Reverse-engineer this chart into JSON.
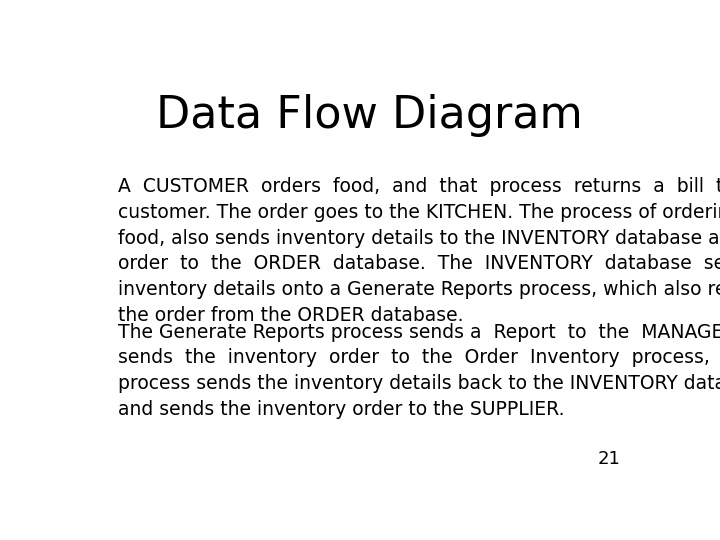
{
  "title": "Data Flow Diagram",
  "title_fontsize": 32,
  "title_font": "DejaVu Sans",
  "paragraph1": "A  CUSTOMER  orders  food,  and  that  process  returns  a  bill  to  the\ncustomer. The order goes to the KITCHEN. The process of ordering the\nfood, also sends inventory details to the INVENTORY database and the\norder  to  the  ORDER  database.  The  INVENTORY  database  sends\ninventory details onto a Generate Reports process, which also receives\nthe order from the ORDER database.",
  "paragraph2": "The Generate Reports process sends a  Report  to  the  MANAGER  who\nsends  the  inventory  order  to  the  Order  Inventory  process,  and  that\nprocess sends the inventory details back to the INVENTORY database,\nand sends the inventory order to the SUPPLIER.",
  "page_number": "21",
  "background_color": "#ffffff",
  "text_color": "#000000",
  "body_fontsize": 13.5,
  "body_font": "DejaVu Sans",
  "page_number_fontsize": 13
}
